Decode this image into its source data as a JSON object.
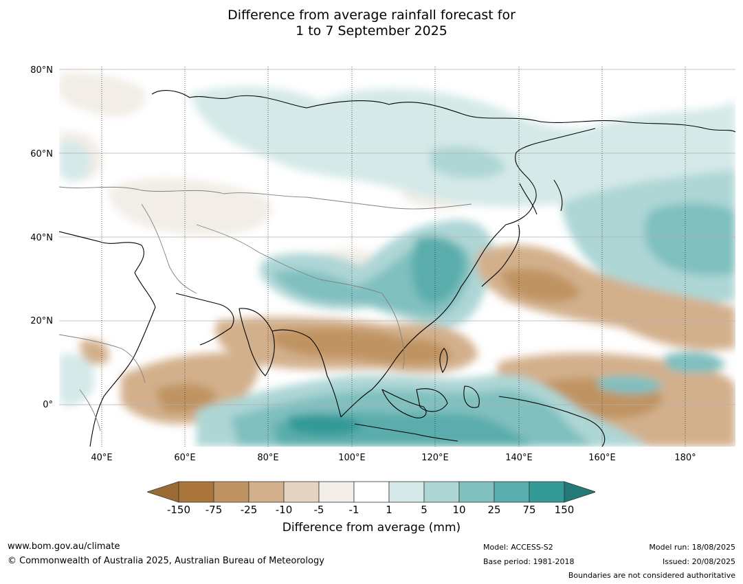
{
  "title_line1": "Difference from average rainfall forecast for",
  "title_line2": "1 to 7 September 2025",
  "lat_labels": [
    "80°N",
    "60°N",
    "40°N",
    "20°N",
    "0°"
  ],
  "lon_labels": [
    "40°E",
    "60°E",
    "80°E",
    "100°E",
    "120°E",
    "140°E",
    "160°E",
    "180°"
  ],
  "colorbar": {
    "title": "Difference from average (mm)",
    "ticks": [
      "-150",
      "-75",
      "-25",
      "-10",
      "-5",
      "-1",
      "1",
      "5",
      "10",
      "25",
      "75",
      "150"
    ],
    "colors": [
      "#9c6a34",
      "#aa763c",
      "#c09462",
      "#d3b08c",
      "#e4d3c1",
      "#f2ede6",
      "#ffffff",
      "#d4e9e8",
      "#add6d5",
      "#80c0bf",
      "#5aadac",
      "#339a98",
      "#237a77"
    ]
  },
  "footer": {
    "website": "www.bom.gov.au/climate",
    "copyright": "© Commonwealth of Australia 2025, Australian Bureau of Meteorology",
    "model": "Model: ACCESS-S2",
    "base_period": "Base period: 1981-2018",
    "model_run": "Model run: 18/08/2025",
    "issued": "Issued: 20/08/2025",
    "boundaries": "Boundaries are not considered authoritative"
  }
}
